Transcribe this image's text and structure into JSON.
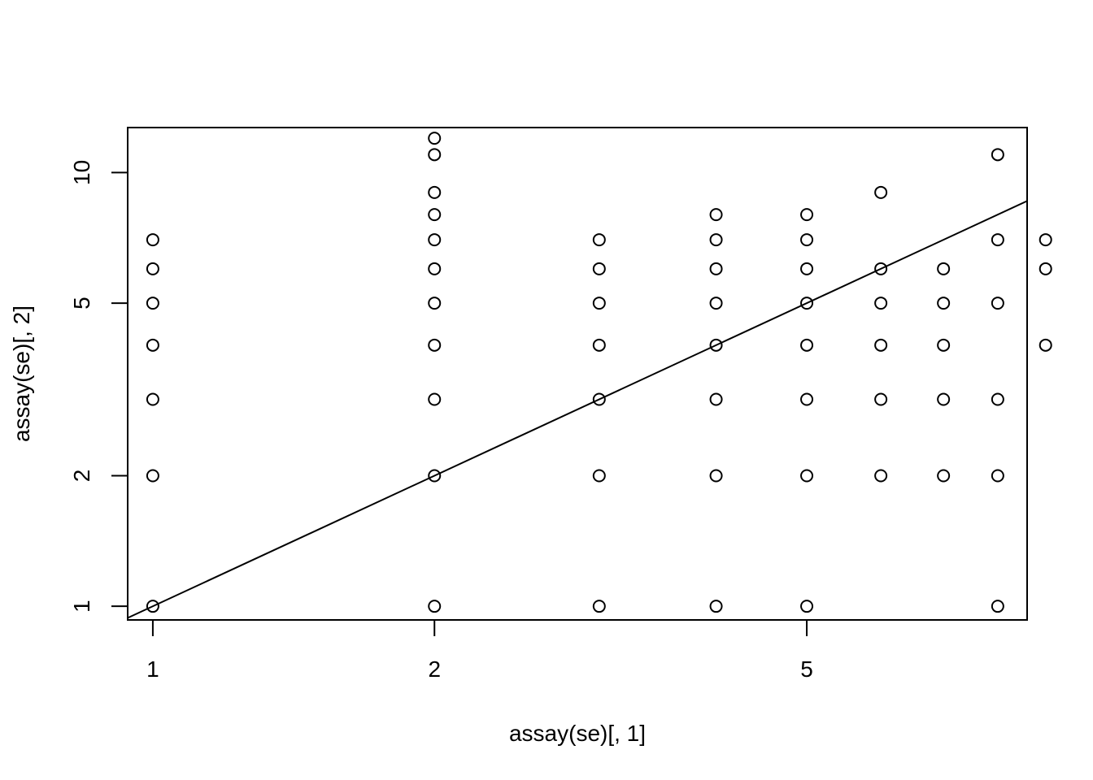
{
  "chart_data": {
    "type": "scatter",
    "title": "",
    "xlabel": "assay(se)[, 1]",
    "ylabel": "assay(se)[, 2]",
    "x_scale": "log",
    "y_scale": "log",
    "xlim": [
      0.94,
      8.6
    ],
    "ylim": [
      0.93,
      12.7
    ],
    "x_ticks": [
      1,
      2,
      5
    ],
    "y_ticks": [
      1,
      2,
      5,
      10
    ],
    "x_tick_labels": [
      "1",
      "2",
      "5"
    ],
    "y_tick_labels": [
      "1",
      "2",
      "5",
      "10"
    ],
    "grid": false,
    "legend": "none",
    "reference_line": {
      "type": "identity",
      "slope": 1,
      "intercept": 0
    },
    "points": [
      {
        "x": 1,
        "y": 1
      },
      {
        "x": 1,
        "y": 2
      },
      {
        "x": 1,
        "y": 3
      },
      {
        "x": 1,
        "y": 4
      },
      {
        "x": 1,
        "y": 5
      },
      {
        "x": 1,
        "y": 6
      },
      {
        "x": 1,
        "y": 7
      },
      {
        "x": 2,
        "y": 1
      },
      {
        "x": 2,
        "y": 2
      },
      {
        "x": 2,
        "y": 3
      },
      {
        "x": 2,
        "y": 4
      },
      {
        "x": 2,
        "y": 5
      },
      {
        "x": 2,
        "y": 6
      },
      {
        "x": 2,
        "y": 7
      },
      {
        "x": 2,
        "y": 8
      },
      {
        "x": 2,
        "y": 9
      },
      {
        "x": 2,
        "y": 11
      },
      {
        "x": 2,
        "y": 12
      },
      {
        "x": 3,
        "y": 1
      },
      {
        "x": 3,
        "y": 2
      },
      {
        "x": 3,
        "y": 3
      },
      {
        "x": 3,
        "y": 4
      },
      {
        "x": 3,
        "y": 5
      },
      {
        "x": 3,
        "y": 6
      },
      {
        "x": 3,
        "y": 7
      },
      {
        "x": 4,
        "y": 1
      },
      {
        "x": 4,
        "y": 2
      },
      {
        "x": 4,
        "y": 3
      },
      {
        "x": 4,
        "y": 4
      },
      {
        "x": 4,
        "y": 5
      },
      {
        "x": 4,
        "y": 6
      },
      {
        "x": 4,
        "y": 7
      },
      {
        "x": 4,
        "y": 8
      },
      {
        "x": 5,
        "y": 1
      },
      {
        "x": 5,
        "y": 2
      },
      {
        "x": 5,
        "y": 3
      },
      {
        "x": 5,
        "y": 4
      },
      {
        "x": 5,
        "y": 5
      },
      {
        "x": 5,
        "y": 6
      },
      {
        "x": 5,
        "y": 7
      },
      {
        "x": 5,
        "y": 8
      },
      {
        "x": 6,
        "y": 2
      },
      {
        "x": 6,
        "y": 3
      },
      {
        "x": 6,
        "y": 4
      },
      {
        "x": 6,
        "y": 5
      },
      {
        "x": 6,
        "y": 6
      },
      {
        "x": 6,
        "y": 9
      },
      {
        "x": 7,
        "y": 2
      },
      {
        "x": 7,
        "y": 3
      },
      {
        "x": 7,
        "y": 4
      },
      {
        "x": 7,
        "y": 5
      },
      {
        "x": 7,
        "y": 6
      },
      {
        "x": 8,
        "y": 1
      },
      {
        "x": 8,
        "y": 2
      },
      {
        "x": 8,
        "y": 3
      },
      {
        "x": 8,
        "y": 5
      },
      {
        "x": 8,
        "y": 7
      },
      {
        "x": 8,
        "y": 11
      },
      {
        "x": 9,
        "y": 4
      },
      {
        "x": 9,
        "y": 6
      },
      {
        "x": 9,
        "y": 7
      }
    ],
    "colors": {
      "points": "#000000",
      "line": "#000000",
      "background": "#ffffff"
    }
  }
}
